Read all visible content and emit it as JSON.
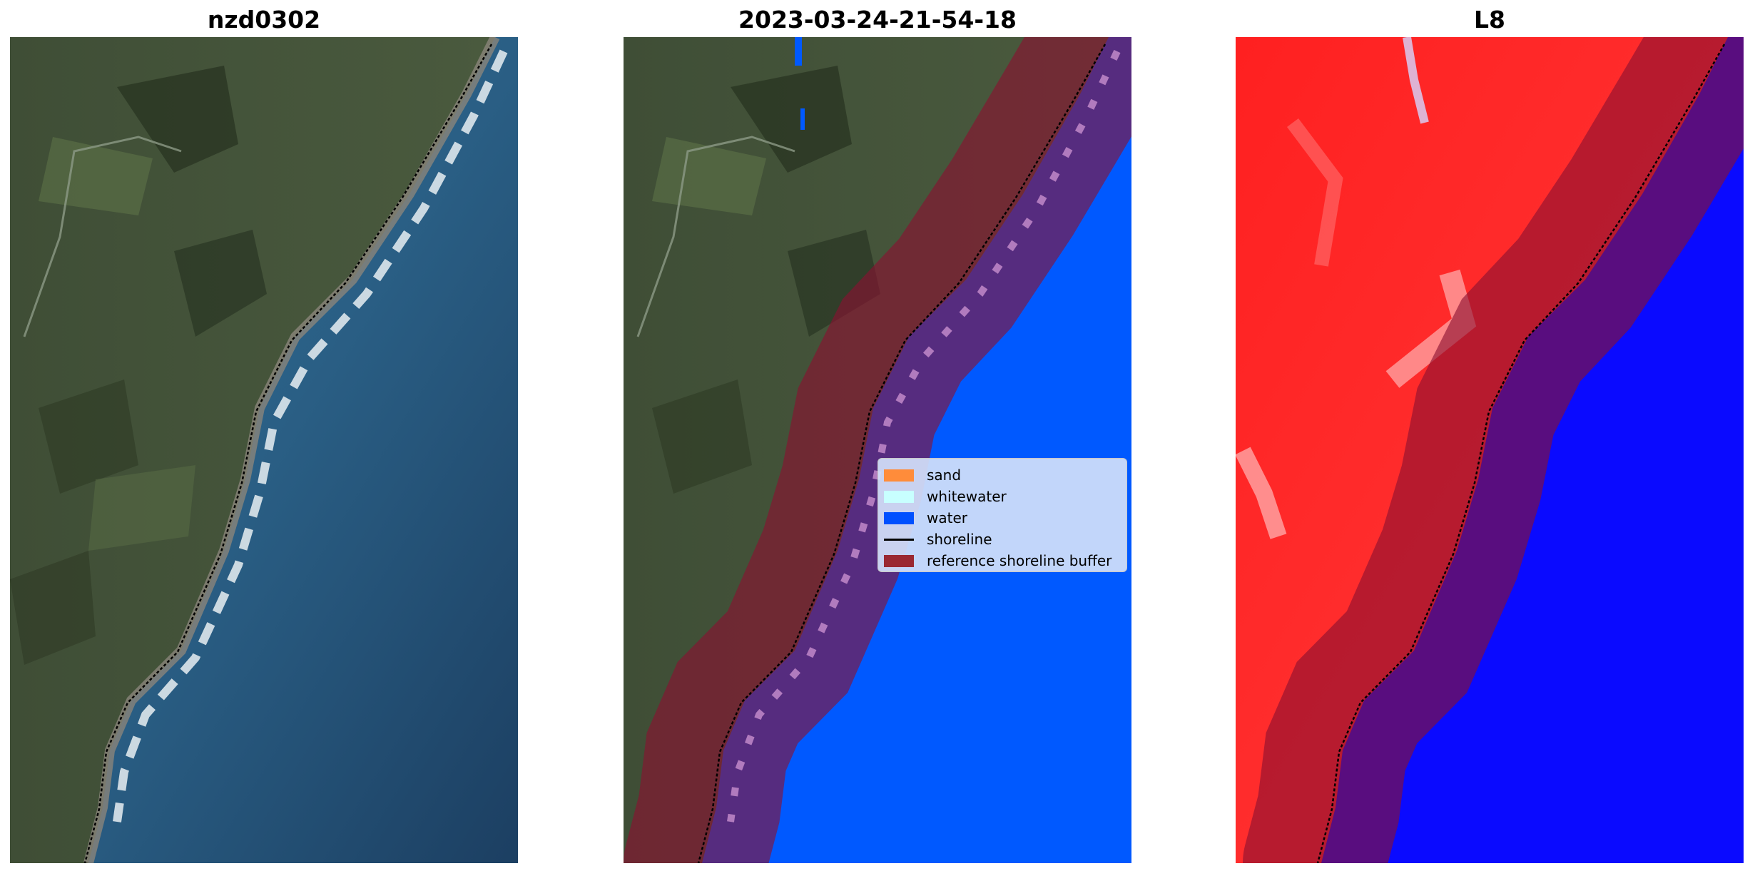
{
  "panels": [
    {
      "title": "nzd0302",
      "icon": "rgb-satellite-image"
    },
    {
      "title": "2023-03-24-21-54-18",
      "icon": "classified-image"
    },
    {
      "title": "L8",
      "icon": "mndwi-image"
    }
  ],
  "legend": {
    "items": [
      {
        "label": "sand",
        "color": "#ff8c3a"
      },
      {
        "label": "whitewater",
        "color": "#c8ffff"
      },
      {
        "label": "water",
        "color": "#0050ff"
      },
      {
        "label": "shoreline",
        "color": "#000000"
      },
      {
        "label": "reference shoreline buffer",
        "color": "#9a2832"
      }
    ]
  },
  "colors": {
    "land_green": "#3d4b33",
    "ocean_blue": "#1f4a70",
    "water_class": "#0059ff",
    "index_red": "#ff2a2a",
    "index_blue": "#0a0aff",
    "buffer": "#8a1030"
  }
}
